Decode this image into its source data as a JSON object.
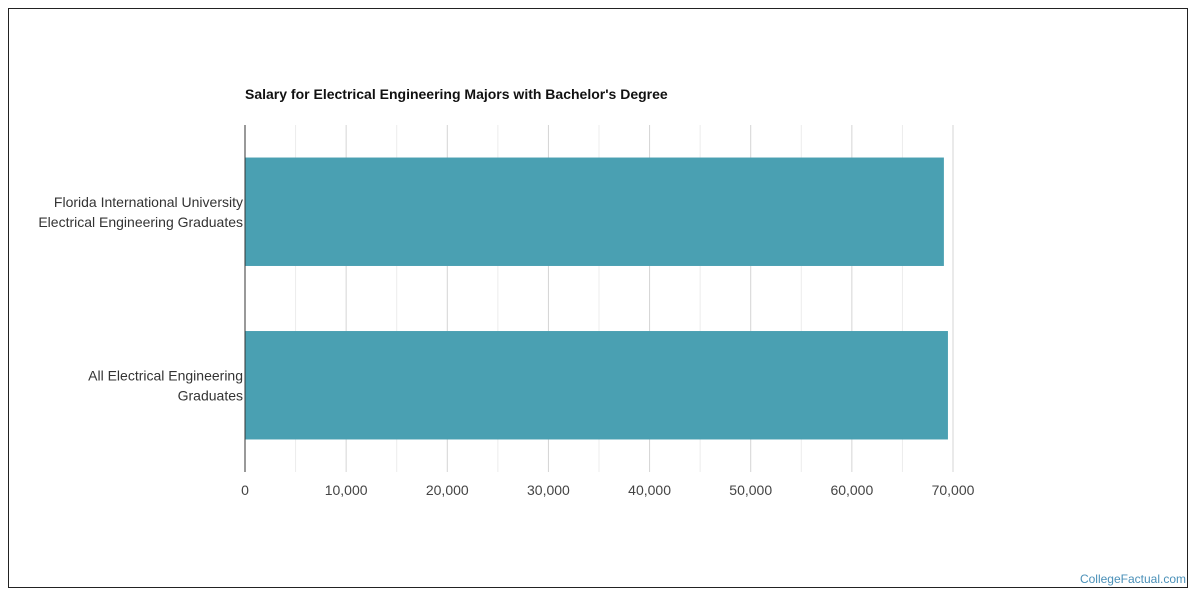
{
  "chart_data": {
    "type": "bar",
    "orientation": "horizontal",
    "title": "Salary for Electrical Engineering Majors with Bachelor's Degree",
    "xlabel": "",
    "ylabel": "",
    "categories": [
      [
        "Florida International University",
        "Electrical Engineering Graduates"
      ],
      [
        "All Electrical Engineering",
        "Graduates"
      ]
    ],
    "values": [
      69100,
      69500
    ],
    "xlim": [
      0,
      70000
    ],
    "x_ticks": [
      0,
      10000,
      20000,
      30000,
      40000,
      50000,
      60000,
      70000
    ],
    "x_tick_labels": [
      "0",
      "10,000",
      "20,000",
      "30,000",
      "40,000",
      "50,000",
      "60,000",
      "70,000"
    ],
    "grid": true,
    "legend": "none",
    "bar_color": "#4aa0b2"
  },
  "watermark": "CollegeFactual.com"
}
